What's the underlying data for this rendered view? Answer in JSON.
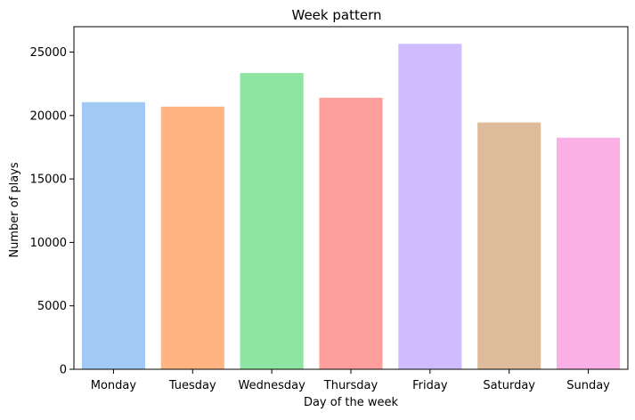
{
  "chart_data": {
    "type": "bar",
    "title": "Week pattern",
    "xlabel": "Day of the week",
    "ylabel": "Number of plays",
    "categories": [
      "Monday",
      "Tuesday",
      "Wednesday",
      "Thursday",
      "Friday",
      "Saturday",
      "Sunday"
    ],
    "values": [
      21050,
      20700,
      23350,
      21400,
      25650,
      19450,
      18250
    ],
    "colors": [
      "#a1c9f4",
      "#ffb482",
      "#8de5a1",
      "#ff9f9b",
      "#d0bbff",
      "#debb9b",
      "#fab0e4"
    ],
    "ylim": [
      0,
      27000
    ],
    "yticks": [
      0,
      5000,
      10000,
      15000,
      20000,
      25000
    ],
    "ytick_labels": [
      "0",
      "5000",
      "10000",
      "15000",
      "20000",
      "25000"
    ],
    "grid": false,
    "legend": "none"
  }
}
